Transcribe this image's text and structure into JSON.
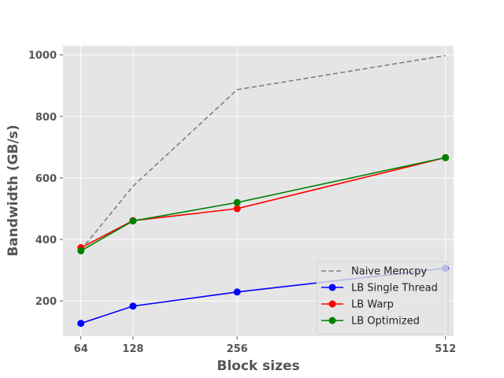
{
  "chart_data": {
    "type": "line",
    "xlabel": "Block sizes",
    "ylabel": "Bandwidth (GB/s)",
    "x": [
      64,
      128,
      256,
      512
    ],
    "xticks": [
      64,
      128,
      256,
      512
    ],
    "xlim": [
      42,
      522
    ],
    "yticks": [
      200,
      400,
      600,
      800,
      1000
    ],
    "ylim": [
      85,
      1030
    ],
    "grid": true,
    "background": "#e5e5e5",
    "legend_position": "lower-right",
    "series": [
      {
        "name": "Naive Memcpy",
        "values": [
          365,
          573,
          887,
          998
        ],
        "color": "#808080",
        "dashed": true,
        "markers": false
      },
      {
        "name": "LB Single Thread",
        "values": [
          127,
          183,
          229,
          306
        ],
        "color": "#0000ff",
        "dashed": false,
        "markers": true
      },
      {
        "name": "LB Warp",
        "values": [
          373,
          461,
          500,
          666
        ],
        "color": "#ff0000",
        "dashed": false,
        "markers": true
      },
      {
        "name": "LB Optimized",
        "values": [
          363,
          460,
          520,
          666
        ],
        "color": "#008000",
        "dashed": false,
        "markers": true
      }
    ]
  }
}
